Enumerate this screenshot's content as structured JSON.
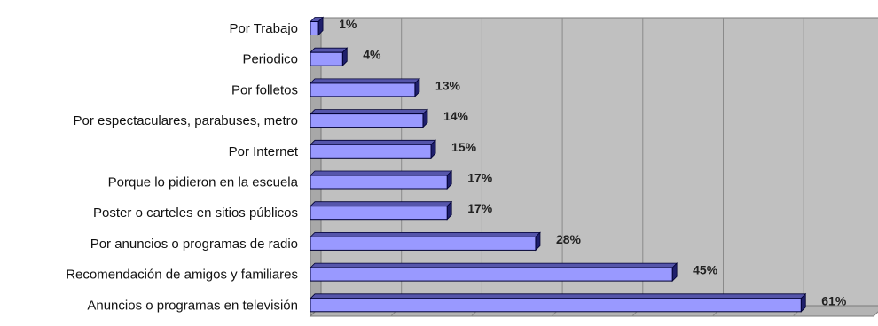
{
  "chart_data": {
    "type": "bar",
    "orientation": "horizontal",
    "categories": [
      "Por Trabajo",
      "Periodico",
      "Por folletos",
      "Por espectaculares, parabuses, metro",
      "Por Internet",
      "Porque lo pidieron en la escuela",
      "Poster o carteles en sitios públicos",
      "Por anuncios o programas de radio",
      "Recomendación de amigos y familiares",
      "Anuncios o programas en televisión"
    ],
    "values": [
      1,
      4,
      13,
      14,
      15,
      17,
      17,
      28,
      45,
      61
    ],
    "value_labels": [
      "1%",
      "4%",
      "13%",
      "14%",
      "15%",
      "17%",
      "17%",
      "28%",
      "45%",
      "61%"
    ],
    "title": "",
    "xlabel": "",
    "ylabel": "",
    "xlim": [
      0,
      70
    ],
    "grid": true,
    "legend": "none",
    "colors": {
      "bar_face": "#9999ff",
      "bar_side": "#1f1f6b",
      "bar_top": "#5555aa",
      "plot_background": "#c0c0c0",
      "grid_line": "#8a8a8a"
    }
  }
}
